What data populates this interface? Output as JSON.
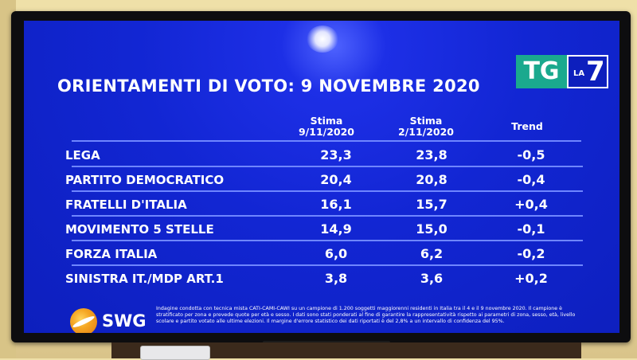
{
  "title": "ORIENTAMENTI DI VOTO: 9 NOVEMBRE 2020",
  "logo": {
    "tg": "TG",
    "la": "LA",
    "seven": "7"
  },
  "headers": {
    "col1": [
      "Stima",
      "9/11/2020"
    ],
    "col2": [
      "Stima",
      "2/11/2020"
    ],
    "trend": "Trend"
  },
  "rows": [
    {
      "party": "LEGA",
      "v1": "23,3",
      "v2": "23,8",
      "trend": "-0,5"
    },
    {
      "party": "PARTITO DEMOCRATICO",
      "v1": "20,4",
      "v2": "20,8",
      "trend": "-0,4"
    },
    {
      "party": "FRATELLI D'ITALIA",
      "v1": "16,1",
      "v2": "15,7",
      "trend": "+0,4"
    },
    {
      "party": "MOVIMENTO 5 STELLE",
      "v1": "14,9",
      "v2": "15,0",
      "trend": "-0,1"
    },
    {
      "party": "FORZA ITALIA",
      "v1": "6,0",
      "v2": "6,2",
      "trend": "-0,2"
    },
    {
      "party": "SINISTRA IT./MDP ART.1",
      "v1": "3,8",
      "v2": "3,6",
      "trend": "+0,2"
    }
  ],
  "swg": "SWG",
  "note": "Indagine condotta con tecnica mista CATI-CAMI-CAWI su un campione di 1.200 soggetti maggiorenni residenti in Italia tra il 4 e il 9 novembre 2020. Il campione è stratificato per zona e prevede quote per età e sesso. I dati sono stati ponderati al fine di garantire la rappresentatività rispetto ai parametri di zona, sesso, età, livello scolare e partito votato alle ultime elezioni. Il margine d'errore statistico dei dati riportati è del 2,8% a un intervallo di confidenza del 95%."
}
